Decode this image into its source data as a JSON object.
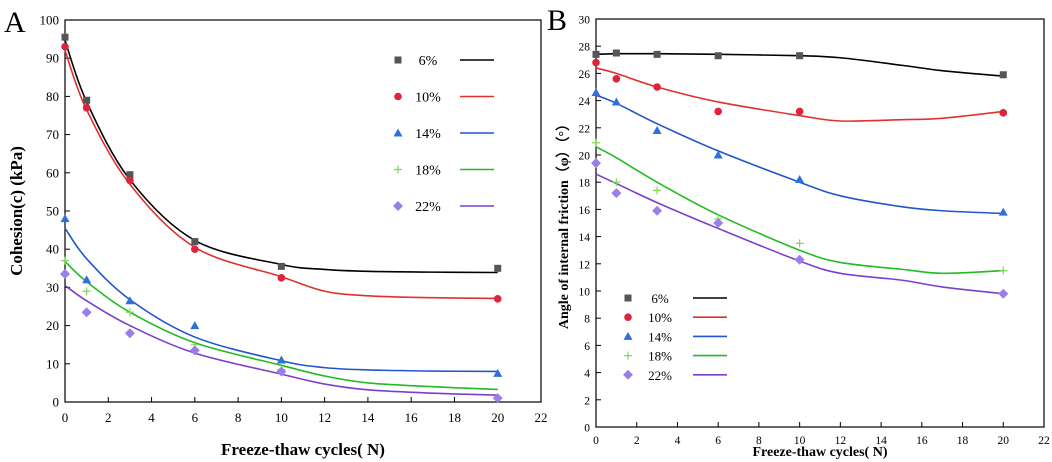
{
  "chart_data": [
    {
      "type": "scatter",
      "panel": "A",
      "title": "",
      "xlabel": "Freeze-thaw cycles( N)",
      "ylabel": "Cohesion(c) (kPa)",
      "xlim": [
        0,
        22
      ],
      "ylim": [
        0,
        100
      ],
      "xticks": [
        "0",
        "2",
        "4",
        "6",
        "8",
        "10",
        "12",
        "14",
        "16",
        "18",
        "20",
        "22"
      ],
      "yticks": [
        "0",
        "10",
        "20",
        "30",
        "40",
        "50",
        "60",
        "70",
        "80",
        "90",
        "100"
      ],
      "legend_position": "top-right",
      "x": [
        0,
        1,
        3,
        6,
        10,
        20
      ],
      "series": [
        {
          "name": "6%",
          "marker": "square",
          "color": "#555555",
          "line_color": "#000000",
          "values": [
            95.5,
            79,
            59.5,
            42,
            35.5,
            35
          ],
          "fit": [
            94.7,
            78.6,
            58.2,
            42.3,
            36.0,
            34.7,
            34.2,
            34.0,
            33.9
          ]
        },
        {
          "name": "10%",
          "marker": "circle",
          "color": "#e0233a",
          "line_color": "#e03030",
          "values": [
            93,
            77,
            58,
            40,
            32.5,
            27
          ],
          "fit": [
            92.0,
            76.5,
            57.0,
            40.5,
            32.8,
            29.0,
            27.8,
            27.3,
            27.1
          ]
        },
        {
          "name": "14%",
          "marker": "triangle",
          "color": "#2f6fdc",
          "line_color": "#2255cc",
          "values": [
            48,
            32,
            26.5,
            20,
            11,
            7.5
          ],
          "fit": [
            45.5,
            37.5,
            26.8,
            17.0,
            10.8,
            9.0,
            8.4,
            8.1,
            8.0
          ]
        },
        {
          "name": "18%",
          "marker": "plus",
          "color": "#7ed957",
          "line_color": "#22bb22",
          "values": [
            37,
            29,
            23.5,
            15,
            8.5,
            1
          ],
          "fit": [
            36.8,
            31.5,
            23.5,
            15.5,
            9.6,
            6.8,
            5.0,
            4.0,
            3.3
          ]
        },
        {
          "name": "22%",
          "marker": "diamond",
          "color": "#9b7fe8",
          "line_color": "#7a3fcf",
          "values": [
            33.5,
            23.5,
            18,
            13.5,
            8,
            1
          ],
          "fit": [
            30.5,
            26.5,
            20.0,
            12.8,
            7.3,
            4.7,
            3.2,
            2.3,
            1.8
          ]
        }
      ],
      "fit_x": [
        0,
        1,
        3,
        6,
        10,
        12,
        14,
        17,
        20
      ]
    },
    {
      "type": "scatter",
      "panel": "B",
      "title": "",
      "xlabel": "Freeze-thaw cycles( N)",
      "ylabel": "Angle of internal friction（φ）（°）",
      "xlim": [
        0,
        22
      ],
      "ylim": [
        0,
        30
      ],
      "xticks": [
        "0",
        "2",
        "4",
        "6",
        "8",
        "10",
        "12",
        "14",
        "16",
        "18",
        "20",
        "22"
      ],
      "yticks": [
        "0",
        "2",
        "4",
        "6",
        "8",
        "10",
        "12",
        "14",
        "16",
        "18",
        "20",
        "22",
        "24",
        "26",
        "28",
        "30"
      ],
      "legend_position": "bottom-left",
      "x": [
        0,
        1,
        3,
        6,
        10,
        20
      ],
      "series": [
        {
          "name": "6%",
          "marker": "square",
          "color": "#555555",
          "line_color": "#000000",
          "values": [
            27.4,
            27.5,
            27.4,
            27.3,
            27.3,
            25.9
          ],
          "fit": [
            27.4,
            27.45,
            27.45,
            27.4,
            27.3,
            27.15,
            26.6,
            26.2,
            25.8
          ]
        },
        {
          "name": "10%",
          "marker": "circle",
          "color": "#e0233a",
          "line_color": "#e03030",
          "values": [
            26.8,
            25.6,
            25.0,
            23.2,
            23.2,
            23.1
          ],
          "fit": [
            26.4,
            26.0,
            25.0,
            23.9,
            22.9,
            22.5,
            22.6,
            22.7,
            23.2
          ]
        },
        {
          "name": "14%",
          "marker": "triangle",
          "color": "#2f6fdc",
          "line_color": "#2255cc",
          "values": [
            24.6,
            23.9,
            21.8,
            20.0,
            18.2,
            15.8
          ],
          "fit": [
            24.4,
            23.8,
            22.3,
            20.3,
            18.0,
            17.0,
            16.2,
            15.9,
            15.7
          ]
        },
        {
          "name": "18%",
          "marker": "plus",
          "color": "#7ed957",
          "line_color": "#22bb22",
          "values": [
            20.9,
            18.0,
            17.4,
            15.3,
            13.5,
            11.5
          ],
          "fit": [
            20.6,
            19.8,
            18.0,
            15.6,
            13.0,
            12.1,
            11.6,
            11.3,
            11.5
          ]
        },
        {
          "name": "22%",
          "marker": "diamond",
          "color": "#9b7fe8",
          "line_color": "#7a3fcf",
          "values": [
            19.4,
            17.2,
            15.9,
            15.0,
            12.3,
            9.8
          ],
          "fit": [
            18.6,
            17.9,
            16.5,
            14.6,
            12.2,
            11.3,
            10.8,
            10.3,
            9.8
          ]
        }
      ],
      "fit_x": [
        0,
        1,
        3,
        6,
        10,
        12,
        15,
        17,
        20
      ]
    }
  ]
}
